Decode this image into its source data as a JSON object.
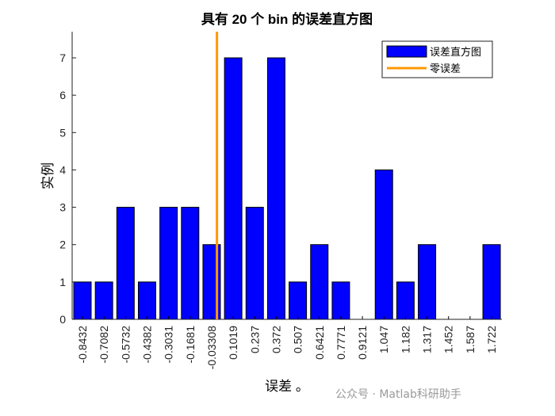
{
  "chart_data": {
    "type": "bar",
    "title": "具有 20 个 bin 的误差直方图",
    "xlabel": "误差 。",
    "ylabel": "实例",
    "categories": [
      "-0.8432",
      "-0.7082",
      "-0.5732",
      "-0.4382",
      "-0.3031",
      "-0.1681",
      "-0.03308",
      "0.1019",
      "0.237",
      "0.372",
      "0.507",
      "0.6421",
      "0.7771",
      "0.9121",
      "1.047",
      "1.182",
      "1.317",
      "1.452",
      "1.587",
      "1.722"
    ],
    "series": [
      {
        "name": "误差直方图",
        "color": "#0000ff",
        "values": [
          1,
          1,
          3,
          1,
          3,
          3,
          2,
          7,
          3,
          7,
          1,
          2,
          1,
          0,
          4,
          1,
          2,
          0,
          0,
          2
        ]
      }
    ],
    "zero_line": {
      "name": "零误差",
      "x": 0,
      "color": "#ff9900"
    },
    "ylim": [
      0,
      7.7
    ],
    "yticks": [
      0,
      1,
      2,
      3,
      4,
      5,
      6,
      7
    ],
    "legend": "top-right",
    "grid": false
  },
  "watermark": "公众号 · Matlab科研助手"
}
